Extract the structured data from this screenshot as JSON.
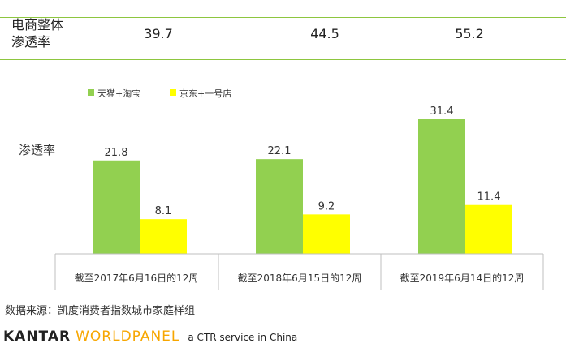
{
  "overall": {
    "label": "电商整体\n渗透率",
    "values": [
      "39.7",
      "44.5",
      "55.2"
    ]
  },
  "chart_data": {
    "type": "bar",
    "ylabel": "渗透率",
    "categories": [
      "截至2017年6月16日的12周",
      "截至2018年6月15日的12周",
      "截至2019年6月14日的12周"
    ],
    "series": [
      {
        "name": "天猫+淘宝",
        "values": [
          21.8,
          22.1,
          31.4
        ],
        "color": "#92d050"
      },
      {
        "name": "京东+一号店",
        "values": [
          8.1,
          9.2,
          11.4
        ],
        "color": "#ffff00"
      }
    ],
    "legend_position": "top-left",
    "grid": false
  },
  "source": "数据来源：凯度消费者指数城市家庭样组",
  "brand": {
    "name_part1": "KANTAR",
    "name_part2": "WORLDPANEL",
    "tagline": "a CTR service in China",
    "accent": "#f7a600"
  }
}
